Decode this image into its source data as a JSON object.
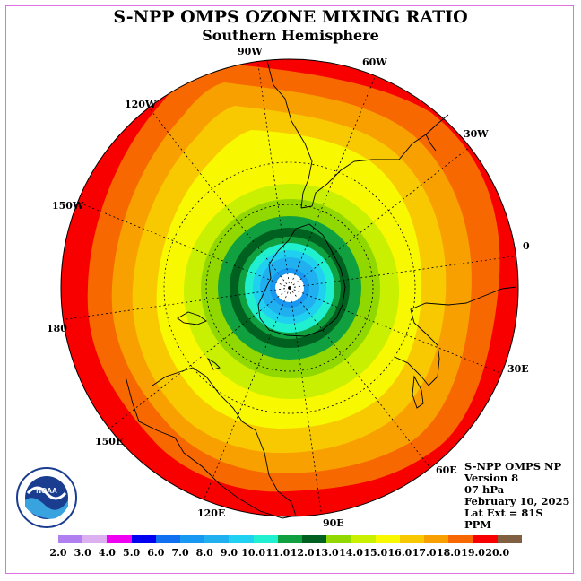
{
  "title": "S-NPP OMPS OZONE MIXING RATIO",
  "subtitle": "Southern Hemisphere",
  "longitude_labels": [
    "90W",
    "60W",
    "120W",
    "30W",
    "150W",
    "0",
    "180",
    "30E",
    "150E",
    "60E",
    "120E",
    "90E"
  ],
  "info": {
    "line1": "S-NPP OMPS NP",
    "line2": "Version 8",
    "line3": "07 hPa",
    "line4": "February 10, 2025",
    "line5": "Lat Ext = 81S",
    "line6": "PPM"
  },
  "colorbar": {
    "ticks": [
      "2.0",
      "3.0",
      "4.0",
      "5.0",
      "6.0",
      "7.0",
      "8.0",
      "9.0",
      "10.0",
      "11.0",
      "12.0",
      "13.0",
      "14.0",
      "15.0",
      "16.0",
      "17.0",
      "18.0",
      "19.0",
      "20.0"
    ],
    "colors": [
      "#b080f0",
      "#dcb0f0",
      "#f000f0",
      "#0000f0",
      "#1070f0",
      "#1898f0",
      "#20b0f0",
      "#20d0f0",
      "#20f0d0",
      "#10a040",
      "#006020",
      "#90d800",
      "#c8f000",
      "#f8f800",
      "#f8c800",
      "#f8a000",
      "#f86800",
      "#f80000",
      "#806040"
    ]
  },
  "map": {
    "projection": "polar stereographic",
    "hemisphere": "south",
    "lat_extent": "81S",
    "pole_value_missing": true
  }
}
